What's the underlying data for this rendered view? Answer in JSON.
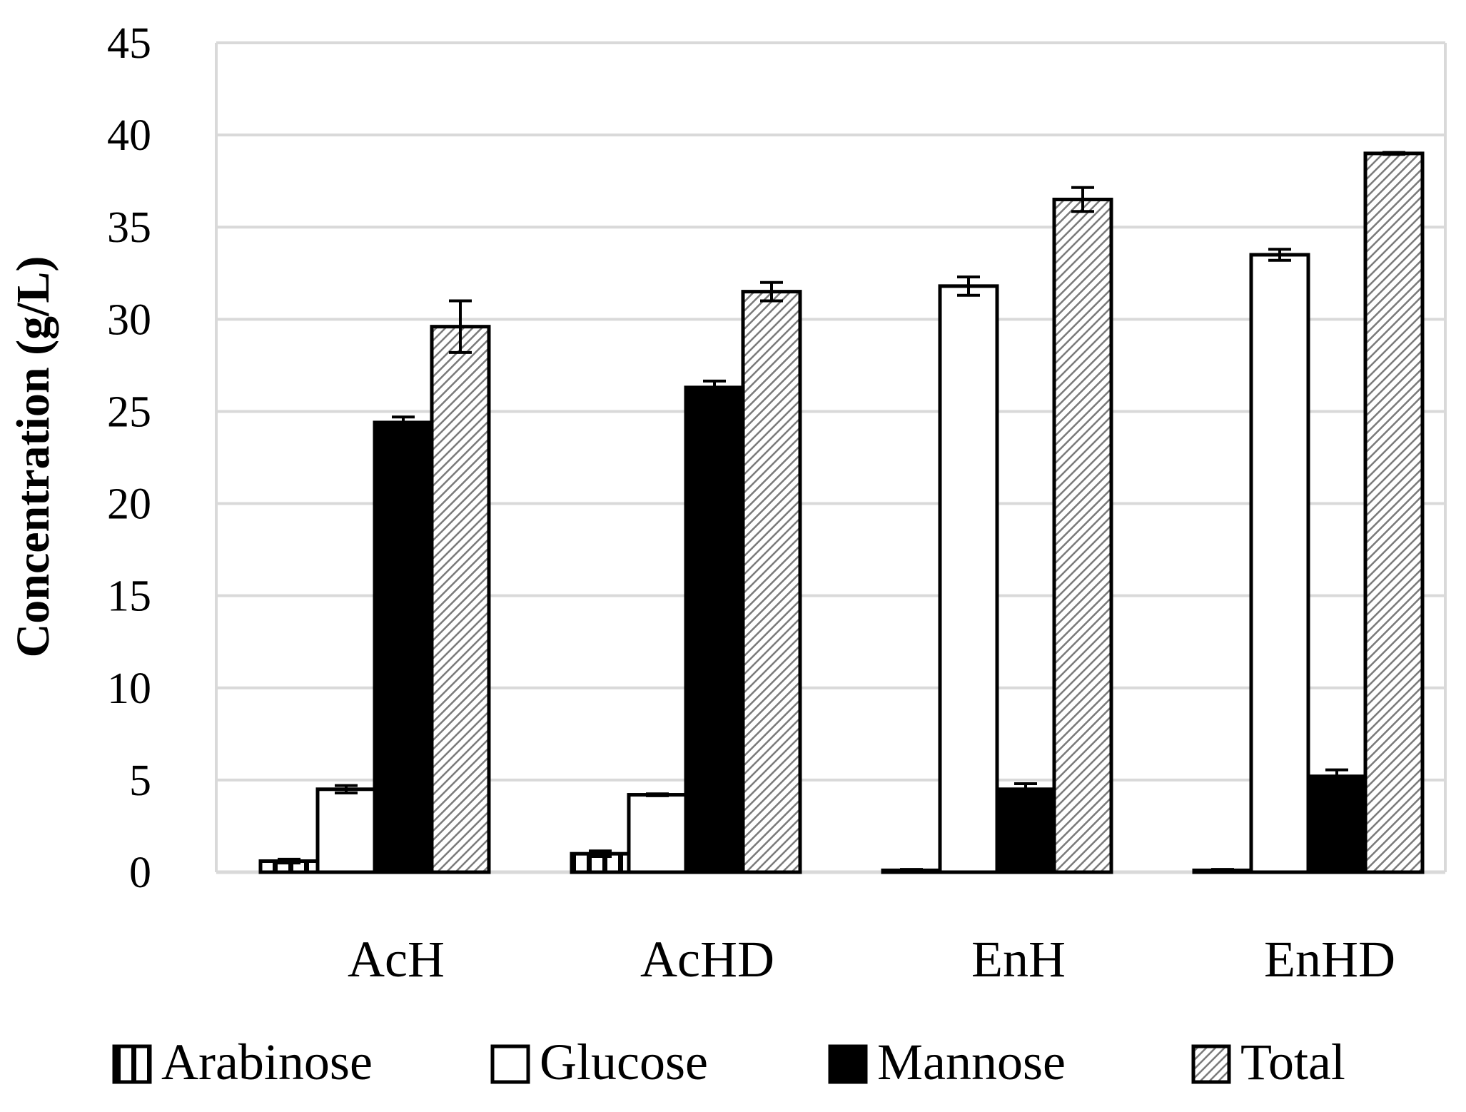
{
  "chart_data": {
    "type": "bar",
    "title": "",
    "xlabel": "",
    "ylabel": "Concentration (g/L)",
    "ylim": [
      0,
      45
    ],
    "yticks": [
      0,
      5,
      10,
      15,
      20,
      25,
      30,
      35,
      40,
      45
    ],
    "ytick_labels": [
      "0",
      "5",
      "10",
      "15",
      "20",
      "25",
      "30",
      "35",
      "40",
      "45"
    ],
    "grid": true,
    "legend_position": "bottom",
    "categories": [
      "AcH",
      "AcHD",
      "EnH",
      "EnHD"
    ],
    "series": [
      {
        "name": "Arabinose",
        "fill": "vertical-stripes",
        "values": [
          0.6,
          1.0,
          0.1,
          0.1
        ],
        "errors": [
          0.1,
          0.15,
          0.05,
          0.05
        ]
      },
      {
        "name": "Glucose",
        "fill": "white",
        "values": [
          4.5,
          4.2,
          31.8,
          33.5
        ],
        "errors": [
          0.2,
          0.05,
          0.5,
          0.3
        ]
      },
      {
        "name": "Mannose",
        "fill": "black",
        "values": [
          24.4,
          26.3,
          4.5,
          5.2
        ],
        "errors": [
          0.3,
          0.35,
          0.3,
          0.35
        ]
      },
      {
        "name": "Total",
        "fill": "hatched",
        "values": [
          29.6,
          31.5,
          36.5,
          39.0
        ],
        "errors": [
          1.4,
          0.5,
          0.65,
          0.05
        ]
      }
    ]
  },
  "colors": {
    "grid": "#d9d9d9",
    "bar_edge": "#000000",
    "hatch_line": "#7a7a7a",
    "hatch_bg": "#ffffff"
  }
}
